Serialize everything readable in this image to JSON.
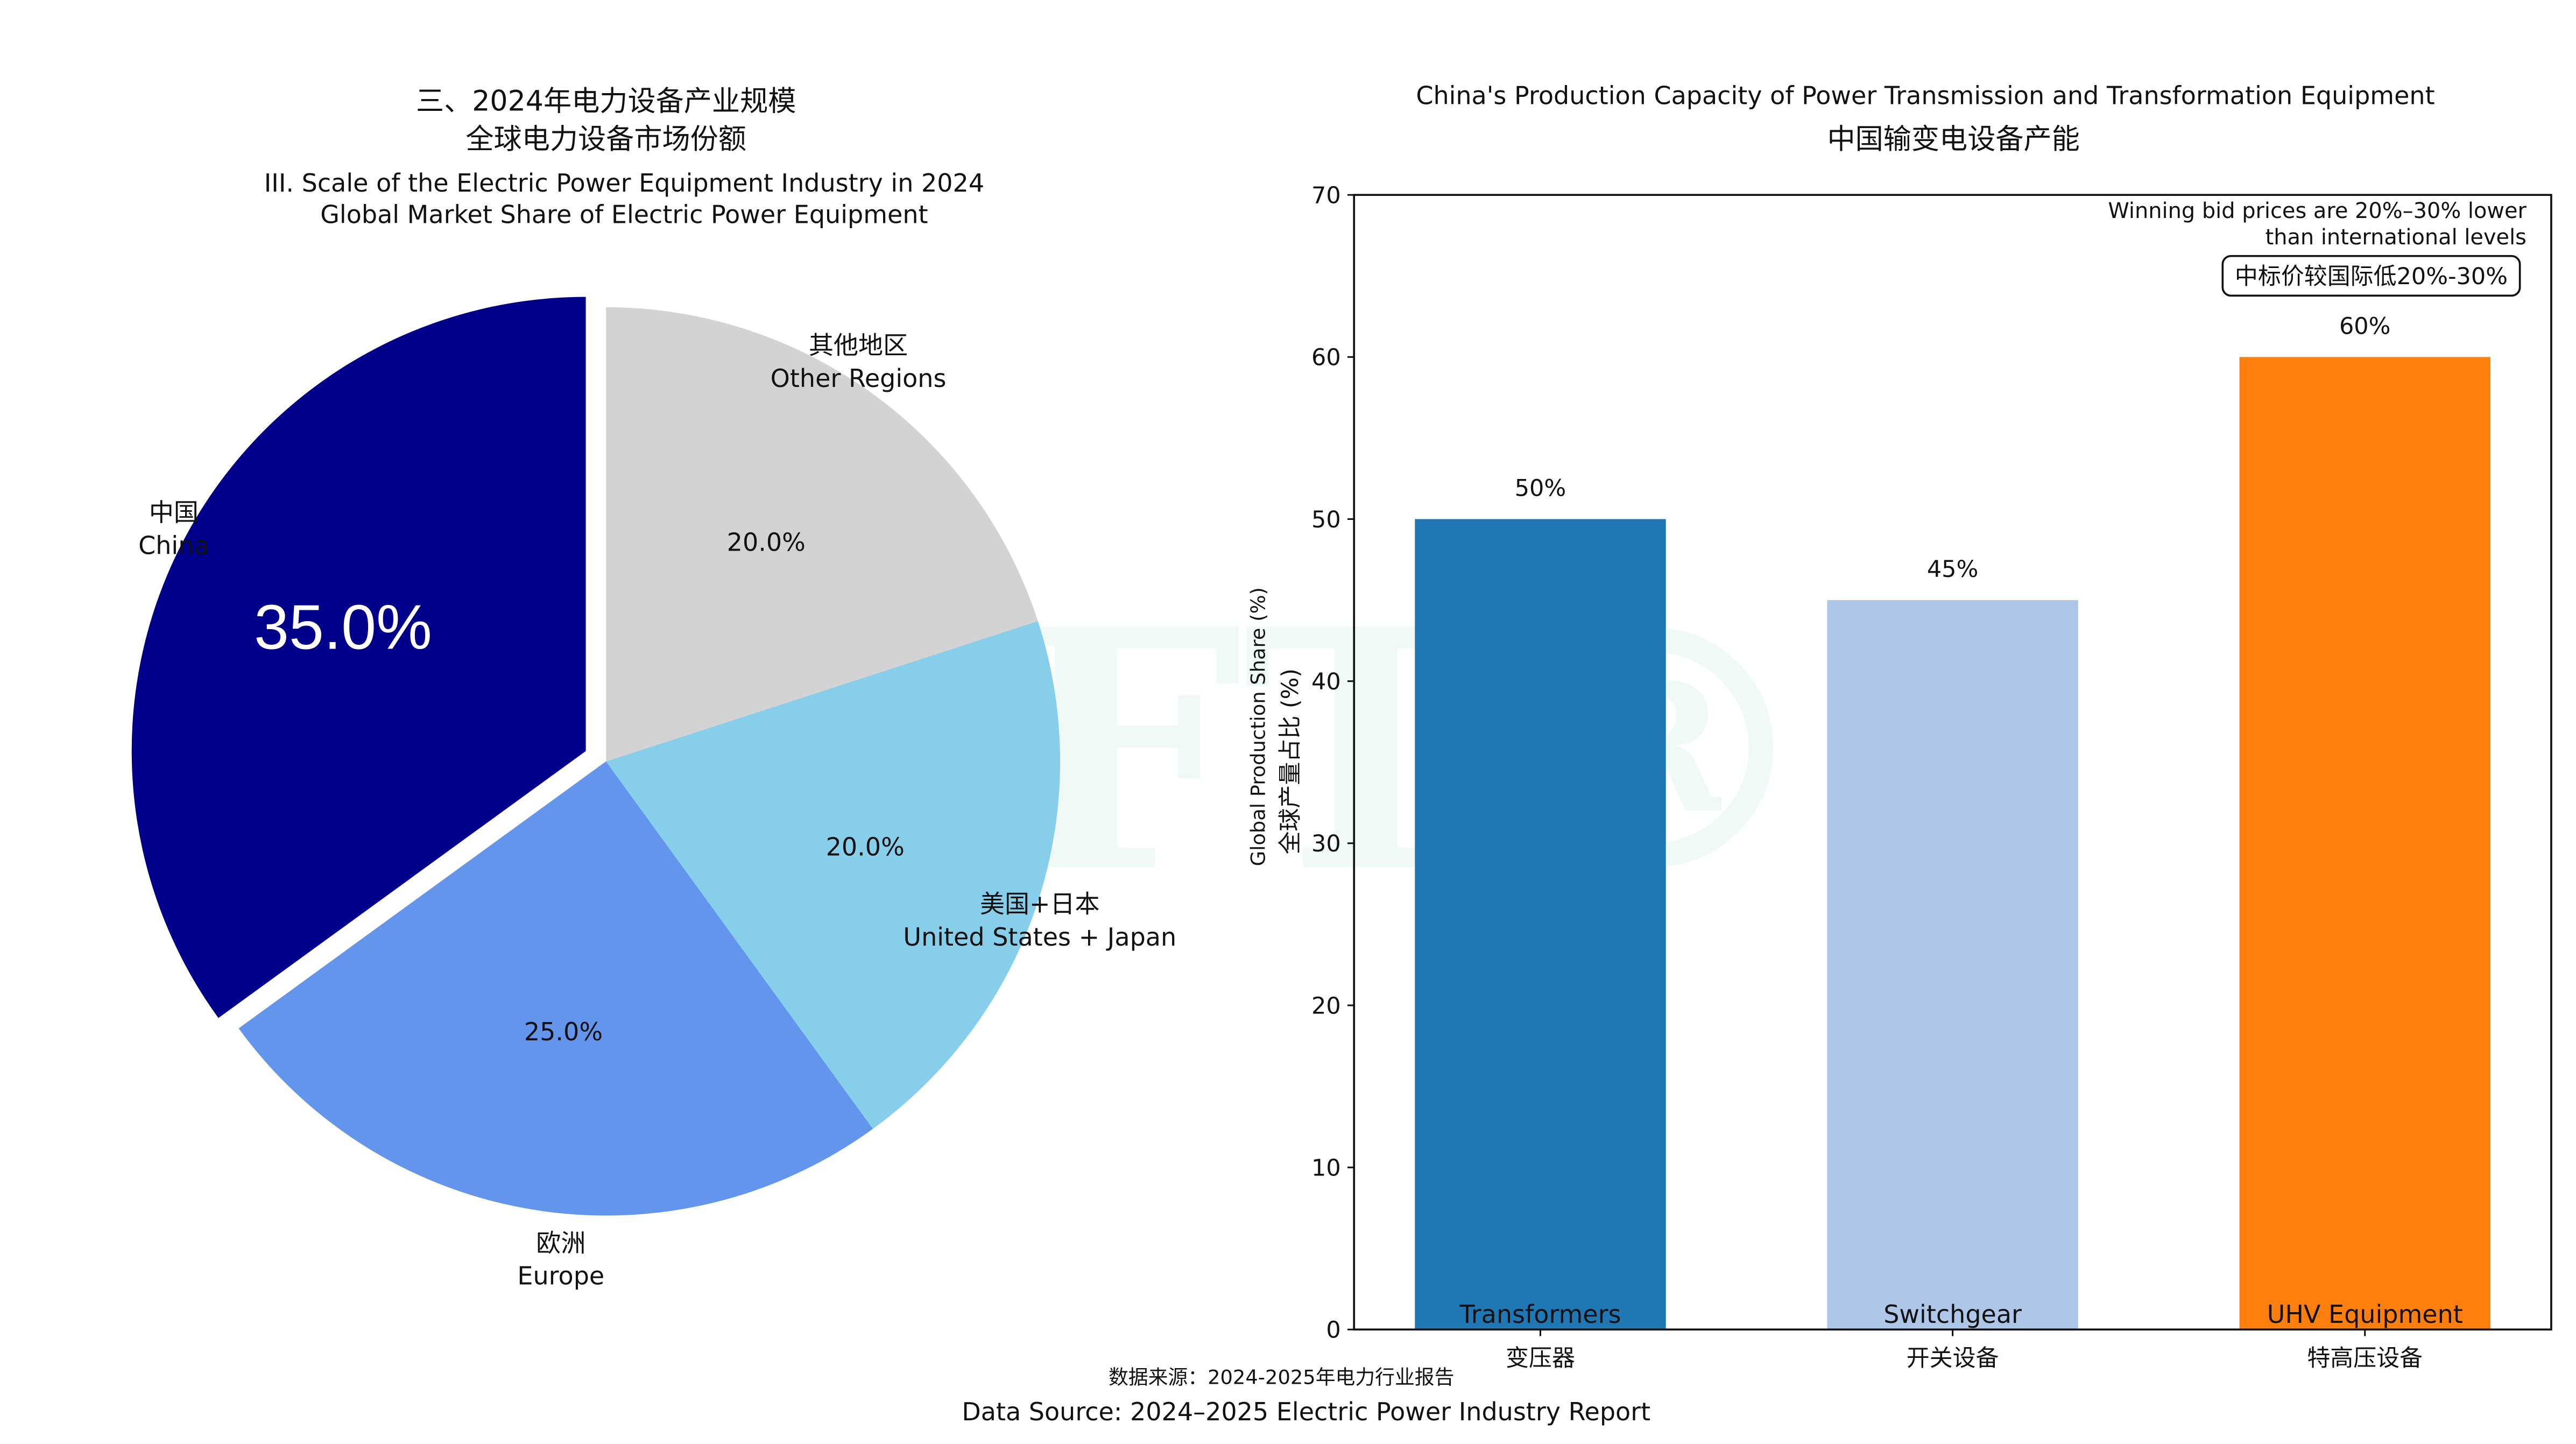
{
  "chart_data": [
    {
      "type": "pie",
      "title_cn_1": "三、2024年电力设备产业规模",
      "title_cn_2": "全球电力设备市场份额",
      "title_en_1": "III. Scale of the Electric Power Equipment Industry in 2024",
      "title_en_2": "Global Market Share of Electric Power Equipment",
      "slices": [
        {
          "label_cn": "中国",
          "label_en": "China",
          "value": 35,
          "pct": "35.0%",
          "color": "#00008B",
          "exploded": true
        },
        {
          "label_cn": "欧洲",
          "label_en": "Europe",
          "value": 25,
          "pct": "25.0%",
          "color": "#6495ED",
          "exploded": false
        },
        {
          "label_cn": "美国+日本",
          "label_en": "United States + Japan",
          "value": 20,
          "pct": "20.0%",
          "color": "#87CEEB",
          "exploded": false
        },
        {
          "label_cn": "其他地区",
          "label_en": "Other Regions",
          "value": 20,
          "pct": "20.0%",
          "color": "#D3D3D3",
          "exploded": false
        }
      ]
    },
    {
      "type": "bar",
      "title_en": "China's Production Capacity of Power Transmission and Transformation Equipment",
      "title_cn": "中国输变电设备产能",
      "ylabel_en": "Global Production Share (%)",
      "ylabel_cn": "全球产量占比 (%)",
      "ylim": [
        0,
        70
      ],
      "yticks": [
        0,
        10,
        20,
        30,
        40,
        50,
        60,
        70
      ],
      "grid": false,
      "categories_cn": [
        "变压器",
        "开关设备",
        "特高压设备"
      ],
      "categories_en": [
        "Transformers",
        "Switchgear",
        "UHV Equipment"
      ],
      "values": [
        50,
        45,
        60
      ],
      "value_labels": [
        "50%",
        "45%",
        "60%"
      ],
      "colors": [
        "#1F77B4",
        "#AEC7E8",
        "#FF7F0E"
      ],
      "annotation_en_1": "Winning bid prices are 20%–30% lower",
      "annotation_en_2": "than international levels",
      "annotation_cn": "中标价较国际低20%-30%"
    }
  ],
  "footer": {
    "source_cn": "数据来源：2024-2025年电力行业报告",
    "source_en": "Data Source: 2024–2025 Electric Power Industry Report"
  },
  "watermark": "LFT®"
}
